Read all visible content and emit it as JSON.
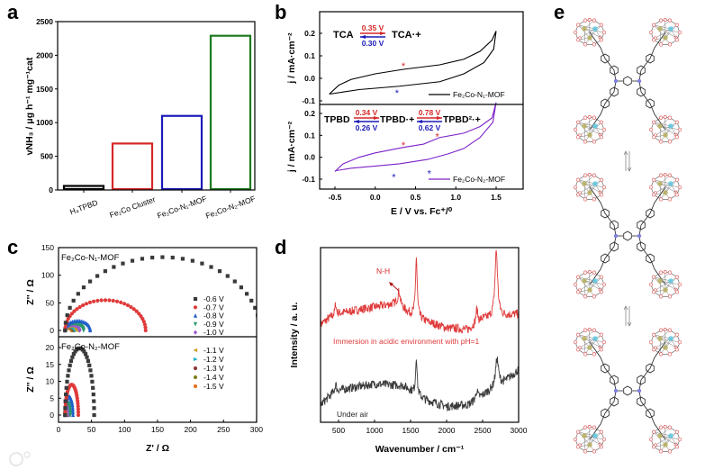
{
  "panel_labels": {
    "a": "a",
    "b": "b",
    "c": "c",
    "d": "d",
    "e": "e"
  },
  "watermark": "大数跨境",
  "chart_data": [
    {
      "panel": "a",
      "type": "bar",
      "categories": [
        "H₄TPBD",
        "Fe₂Co Cluster",
        "Fe₂Co-N₁-MOF",
        "Fe₂Co-N₂-MOF"
      ],
      "values": [
        60,
        690,
        1100,
        2290
      ],
      "colors": [
        "#000000",
        "#d62728",
        "#1a1ab8",
        "#1f7a1f"
      ],
      "title": "",
      "xlabel": "",
      "ylabel": "vNH₃ / μg h⁻¹ mg⁻¹cat",
      "ylim": [
        0,
        2500
      ],
      "yticks": [
        0,
        500,
        1000,
        1500,
        2000,
        2500
      ]
    },
    {
      "panel": "b",
      "type": "line",
      "xlabel": "E / V vs. Fc⁺/⁰",
      "xlim": [
        -0.69,
        1.83
      ],
      "xticks": [
        -0.5,
        0.0,
        0.5,
        1.0,
        1.5
      ],
      "subplots": [
        {
          "ylabel": "j / mA·cm⁻²",
          "ylim": [
            -0.12,
            0.25
          ],
          "yticks": [
            -0.1,
            0.0,
            0.1,
            0.2
          ],
          "legend": "Fe₂Co-N₁-MOF",
          "color": "#000000",
          "points": [
            [
              -0.57,
              -0.07
            ],
            [
              -0.45,
              -0.03
            ],
            [
              -0.3,
              -0.005
            ],
            [
              0,
              0.02
            ],
            [
              0.35,
              0.04
            ],
            [
              0.8,
              0.06
            ],
            [
              1.1,
              0.085
            ],
            [
              1.3,
              0.12
            ],
            [
              1.45,
              0.17
            ],
            [
              1.5,
              0.21
            ],
            [
              1.47,
              0.13
            ],
            [
              1.35,
              0.07
            ],
            [
              1.1,
              0.02
            ],
            [
              0.8,
              -0.015
            ],
            [
              0.3,
              -0.035
            ],
            [
              -0.2,
              -0.05
            ],
            [
              -0.57,
              -0.07
            ]
          ],
          "stars": [
            {
              "E": 0.35,
              "j": 0.06,
              "color": "#d62728"
            },
            {
              "E": 0.27,
              "j": -0.06,
              "color": "#1a1ab8"
            }
          ],
          "scheme": {
            "left": "TCA",
            "right": "TCA·+",
            "ox": "0.35 V",
            "red": "0.30 V"
          }
        },
        {
          "ylabel": "j / mA·cm⁻²",
          "ylim": [
            -0.12,
            0.25
          ],
          "yticks": [
            -0.1,
            0.0,
            0.1,
            0.2
          ],
          "legend": "Fe₂Co-N₂-MOF",
          "color": "#7b22c8",
          "points": [
            [
              -0.5,
              -0.065
            ],
            [
              -0.4,
              -0.03
            ],
            [
              -0.2,
              0.0
            ],
            [
              0,
              0.02
            ],
            [
              0.35,
              0.045
            ],
            [
              0.6,
              0.06
            ],
            [
              0.8,
              0.09
            ],
            [
              1.1,
              0.11
            ],
            [
              1.3,
              0.14
            ],
            [
              1.45,
              0.18
            ],
            [
              1.5,
              0.25
            ],
            [
              1.46,
              0.16
            ],
            [
              1.3,
              0.09
            ],
            [
              1.1,
              0.04
            ],
            [
              0.9,
              0.015
            ],
            [
              0.65,
              -0.01
            ],
            [
              0.3,
              -0.03
            ],
            [
              0,
              -0.04
            ],
            [
              -0.3,
              -0.05
            ],
            [
              -0.5,
              -0.062
            ]
          ],
          "stars": [
            {
              "E": 0.35,
              "j": 0.06,
              "color": "#d62728"
            },
            {
              "E": 0.77,
              "j": 0.1,
              "color": "#d62728"
            },
            {
              "E": 0.23,
              "j": -0.085,
              "color": "#1a1ab8"
            },
            {
              "E": 0.67,
              "j": -0.07,
              "color": "#1a1ab8"
            }
          ],
          "scheme": {
            "left": "TPBD",
            "mid": "TPBD·+",
            "right": "TPBD²·+",
            "ox1": "0.34 V",
            "red1": "0.26 V",
            "ox2": "0.78 V",
            "red2": "0.62 V"
          }
        }
      ]
    },
    {
      "panel": "c",
      "type": "scatter",
      "xlabel": "Z' / Ω",
      "xlim": [
        0,
        300
      ],
      "xticks": [
        0,
        50,
        100,
        150,
        200,
        250,
        300
      ],
      "legend": [
        {
          "label": "-0.6 V",
          "color": "#3a3a3a",
          "marker": "square"
        },
        {
          "label": "-0.7 V",
          "color": "#e03a3a",
          "marker": "circle"
        },
        {
          "label": "-0.8 V",
          "color": "#1f5fc8",
          "marker": "triangle"
        },
        {
          "label": "-0.9 V",
          "color": "#2a9a6a",
          "marker": "tri-down"
        },
        {
          "label": "-1.0 V",
          "color": "#9b59d0",
          "marker": "diamond"
        },
        {
          "label": "-1.1 V",
          "color": "#c8a020",
          "marker": "tri-left"
        },
        {
          "label": "-1.2 V",
          "color": "#20b0c0",
          "marker": "tri-right"
        },
        {
          "label": "-1.3 V",
          "color": "#8b3a3a",
          "marker": "hexagon"
        },
        {
          "label": "-1.4 V",
          "color": "#808020",
          "marker": "star"
        },
        {
          "label": "-1.5 V",
          "color": "#e87020",
          "marker": "pentagon"
        }
      ],
      "subplots": [
        {
          "title": "Fe₂Co-N₁-MOF",
          "ylabel": "Z'' / Ω",
          "ylim": [
            -15,
            155
          ],
          "yticks": [
            0,
            50,
            100,
            150
          ],
          "Rs": 10,
          "Rct": [
            295,
            122,
            38,
            28,
            22,
            18,
            16,
            14,
            12,
            10
          ]
        },
        {
          "title": "Fe₂Co-N₂-MOF",
          "ylabel": "Z'' / Ω",
          "ylim": [
            -2,
            23
          ],
          "yticks": [
            0,
            5,
            10,
            15,
            20
          ],
          "Rs": 10,
          "Rct": [
            44,
            20,
            12,
            8,
            6,
            5,
            4.5,
            4,
            3.5,
            3
          ]
        }
      ]
    },
    {
      "panel": "d",
      "type": "line",
      "xlabel": "Wavenumber / cm⁻¹",
      "ylabel": "Intensity / a. u.",
      "xlim": [
        250,
        3000
      ],
      "xticks": [
        500,
        1000,
        1500,
        2000,
        2500,
        3000
      ],
      "series": [
        {
          "name": "Immersion in acidic environment with pH=1",
          "color": "#e03a3a",
          "baseline": [
            [
              250,
              5.6
            ],
            [
              450,
              6.2
            ],
            [
              1000,
              6.6
            ],
            [
              1300,
              6.8
            ],
            [
              1500,
              6.2
            ],
            [
              1700,
              5.8
            ],
            [
              2000,
              5.4
            ],
            [
              2300,
              5.3
            ],
            [
              2500,
              5.9
            ],
            [
              2800,
              6.1
            ],
            [
              3000,
              6.2
            ]
          ],
          "peaks": [
            [
              460,
              0.6,
              10
            ],
            [
              1340,
              0.8,
              20
            ],
            [
              1580,
              3.4,
              14
            ],
            [
              2420,
              0.8,
              15
            ],
            [
              2690,
              3.8,
              22
            ]
          ],
          "noise": 0.25
        },
        {
          "name": "Under air",
          "color": "#3a3a3a",
          "baseline": [
            [
              250,
              1.0
            ],
            [
              450,
              1.8
            ],
            [
              1000,
              2.2
            ],
            [
              1400,
              2.1
            ],
            [
              1700,
              1.3
            ],
            [
              2000,
              0.9
            ],
            [
              2300,
              1.0
            ],
            [
              2600,
              1.8
            ],
            [
              2800,
              2.3
            ],
            [
              3000,
              3.0
            ]
          ],
          "peaks": [
            [
              460,
              0.4,
              10
            ],
            [
              1580,
              2.2,
              12
            ],
            [
              2420,
              0.5,
              15
            ],
            [
              2700,
              1.6,
              25
            ]
          ],
          "noise": 0.25
        }
      ],
      "annotation": {
        "label": "N-H",
        "x": 1340
      }
    }
  ]
}
